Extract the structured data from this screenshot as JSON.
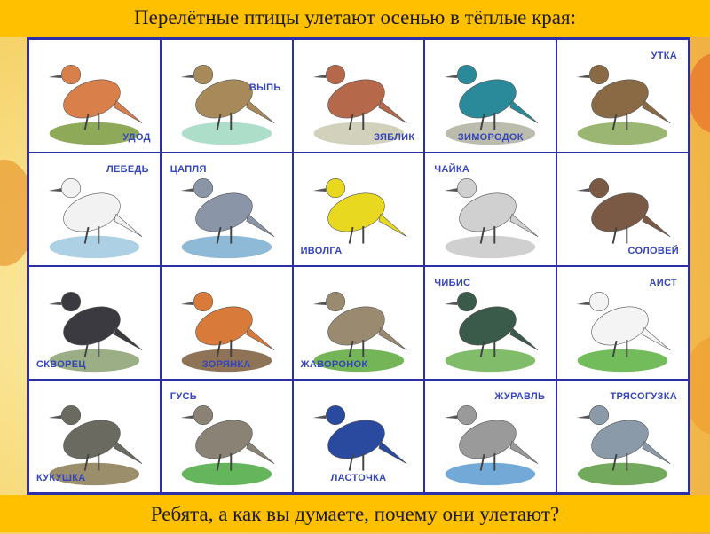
{
  "title": "Перелётные птицы улетают осенью в тёплые края:",
  "question": "Ребята, а как вы думаете, почему они улетают?",
  "colors": {
    "banner": "#ffc000",
    "grid_border": "#2b2fa8",
    "label": "#3646b8"
  },
  "birds": [
    {
      "name": "УДОД",
      "pos": "br",
      "body": "#d9804a",
      "ground": "#7a9a3a"
    },
    {
      "name": "ВЫПЬ",
      "pos": "mr",
      "body": "#a88a5a",
      "ground": "#9fd8c0"
    },
    {
      "name": "ЗЯБЛИК",
      "pos": "br",
      "body": "#b5694a",
      "ground": "#c9c9b0"
    },
    {
      "name": "ЗИМОРОДОК",
      "pos": "bc",
      "body": "#2a8a9a",
      "ground": "#b0b0a0"
    },
    {
      "name": "УТКА",
      "pos": "tr",
      "body": "#8a6a45",
      "ground": "#8aa85a"
    },
    {
      "name": "ЛЕБЕДЬ",
      "pos": "tr",
      "body": "#f2f2f2",
      "ground": "#9fc8e0"
    },
    {
      "name": "ЦАПЛЯ",
      "pos": "tl",
      "body": "#8a96a8",
      "ground": "#7aaed0"
    },
    {
      "name": "ИВОЛГА",
      "pos": "bl",
      "body": "#e8d820",
      "ground": "#ffffff"
    },
    {
      "name": "ЧАЙКА",
      "pos": "tl",
      "body": "#d0d0d0",
      "ground": "#c8c8c8"
    },
    {
      "name": "СОЛОВЕЙ",
      "pos": "br",
      "body": "#7a5a45",
      "ground": "#ffffff"
    },
    {
      "name": "СКВОРЕЦ",
      "pos": "bl",
      "body": "#3a3a40",
      "ground": "#8aa070"
    },
    {
      "name": "ЗОРЯНКА",
      "pos": "bc",
      "body": "#d87a3a",
      "ground": "#7a5a3a"
    },
    {
      "name": "ЖАВОРОНОК",
      "pos": "bl",
      "body": "#9a8a70",
      "ground": "#5aa83a"
    },
    {
      "name": "ЧИБИС",
      "pos": "tl",
      "body": "#3a5a4a",
      "ground": "#6ab050"
    },
    {
      "name": "АИСТ",
      "pos": "tr",
      "body": "#f4f4f4",
      "ground": "#5ab040"
    },
    {
      "name": "КУКУШКА",
      "pos": "bl",
      "body": "#6a6a60",
      "ground": "#8a7a50"
    },
    {
      "name": "ГУСЬ",
      "pos": "tl",
      "body": "#8a8275",
      "ground": "#4aa840"
    },
    {
      "name": "ЛАСТОЧКА",
      "pos": "bc",
      "body": "#2a4aa0",
      "ground": "#ffffff"
    },
    {
      "name": "ЖУРАВЛЬ",
      "pos": "tr",
      "body": "#9a9a9a",
      "ground": "#5a9ad0"
    },
    {
      "name": "ТРЯСОГУЗКА",
      "pos": "tr",
      "body": "#8a9aa8",
      "ground": "#5a9a40"
    }
  ]
}
